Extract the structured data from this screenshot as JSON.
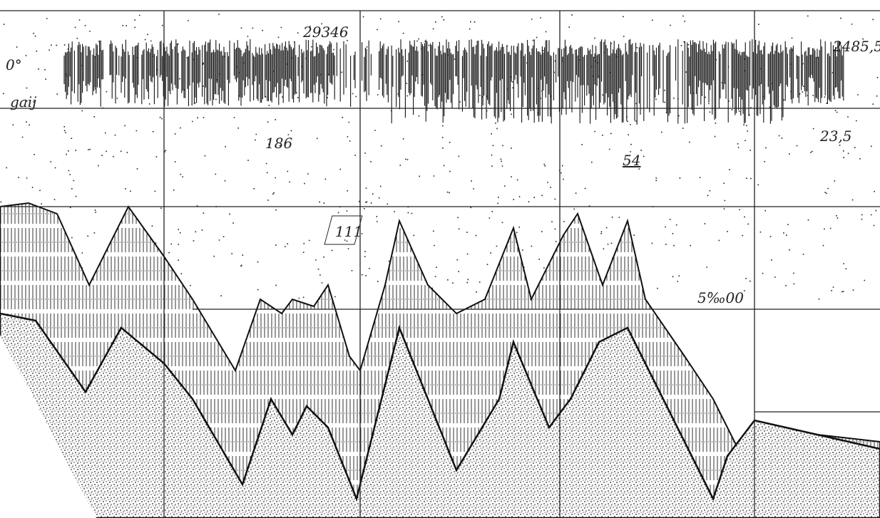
{
  "annotations": {
    "heading": "0°",
    "left_note": "gaij",
    "top_center": "29346",
    "top_right": "2485,5",
    "mid_left": "186",
    "mid_center": "54",
    "mid_right": "23,5",
    "boxed": "111",
    "salinity": "5‰00"
  }
}
